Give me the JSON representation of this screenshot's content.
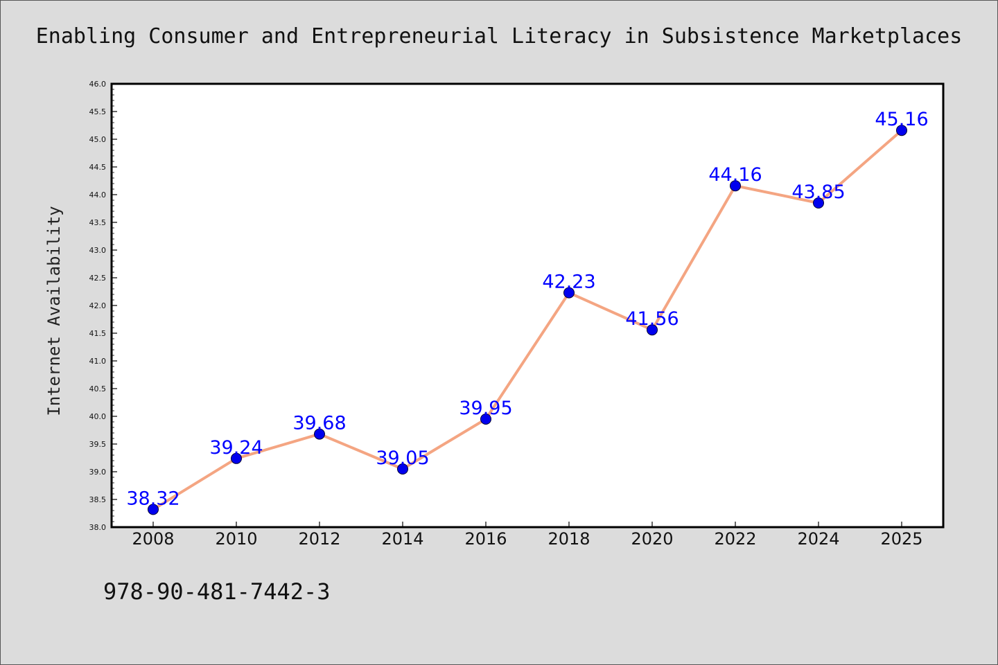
{
  "page": {
    "footer_text": "978-90-481-7442-3"
  },
  "chart_data": {
    "type": "line",
    "title": "Enabling Consumer and Entrepreneurial Literacy in Subsistence Marketplaces",
    "xlabel": "",
    "ylabel": "Internet Availability",
    "categories": [
      "2008",
      "2010",
      "2012",
      "2014",
      "2016",
      "2018",
      "2020",
      "2022",
      "2024",
      "2025"
    ],
    "series": [
      {
        "values": [
          38.32,
          39.24,
          39.68,
          39.05,
          39.95,
          42.23,
          41.56,
          44.16,
          43.85,
          45.16
        ],
        "data_labels": [
          "38.32",
          "39.24",
          "39.68",
          "39.05",
          "39.95",
          "42.23",
          "41.56",
          "44.16",
          "43.85",
          "45.16"
        ]
      }
    ],
    "ylim": [
      38.0,
      46.0
    ],
    "yticks": [
      "38.0",
      "38.5",
      "39.0",
      "39.5",
      "40.0",
      "40.5",
      "41.0",
      "41.5",
      "42.0",
      "42.5",
      "43.0",
      "43.5",
      "44.0",
      "44.5",
      "45.0",
      "45.5",
      "46.0"
    ],
    "grid": false,
    "colors": {
      "line": "#f4a582",
      "marker": "#0000ee",
      "label": "#0000ff",
      "plot_background": "#ffffff",
      "page_background": "#dcdcdc"
    }
  }
}
